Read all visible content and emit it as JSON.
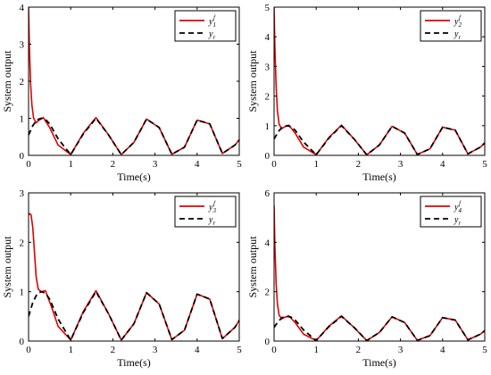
{
  "figure": {
    "background": "#ffffff",
    "colors": {
      "actual": "#e00000",
      "reference": "#000000"
    }
  },
  "chart_data": [
    {
      "type": "line",
      "xlabel": "Time(s)",
      "ylabel": "System output",
      "xlim": [
        0,
        5
      ],
      "ylim": [
        0,
        4
      ],
      "xticks": [
        "0",
        "1",
        "2",
        "3",
        "4",
        "5"
      ],
      "yticks": [
        "0",
        "1",
        "2",
        "3",
        "4"
      ],
      "legend": {
        "placement": "top-right"
      },
      "series": [
        {
          "name": "y1f",
          "label_base": "y",
          "label_sub": "1",
          "label_sup": "f",
          "color": "#e00000",
          "style": "solid",
          "x": [
            0,
            0.02,
            0.05,
            0.08,
            0.12,
            0.18,
            0.25,
            0.35,
            0.5,
            0.7,
            1.0,
            1.3,
            1.6,
            1.9,
            2.2,
            2.5,
            2.8,
            3.1,
            3.4,
            3.7,
            4.0,
            4.3,
            4.6,
            4.9,
            5.0
          ],
          "y": [
            4.0,
            2.9,
            1.9,
            1.35,
            1.0,
            0.88,
            0.95,
            1.02,
            0.75,
            0.28,
            0.02,
            0.6,
            1.02,
            0.55,
            0.02,
            0.35,
            0.98,
            0.75,
            0.03,
            0.22,
            0.95,
            0.85,
            0.05,
            0.28,
            0.42
          ]
        },
        {
          "name": "yr",
          "label_base": "y",
          "label_sub": "r",
          "label_sup": "",
          "color": "#000000",
          "style": "dashed",
          "x": [
            0,
            0.1,
            0.2,
            0.3,
            0.4,
            0.5,
            0.7,
            1.0,
            1.3,
            1.6,
            1.9,
            2.2,
            2.5,
            2.8,
            3.1,
            3.4,
            3.7,
            4.0,
            4.3,
            4.6,
            4.9,
            5.0
          ],
          "y": [
            0.55,
            0.8,
            0.96,
            1.0,
            0.97,
            0.85,
            0.45,
            0.02,
            0.58,
            1.0,
            0.55,
            0.02,
            0.35,
            0.98,
            0.75,
            0.03,
            0.22,
            0.95,
            0.85,
            0.05,
            0.28,
            0.42
          ]
        }
      ]
    },
    {
      "type": "line",
      "xlabel": "Time(s)",
      "ylabel": "System output",
      "xlim": [
        0,
        5
      ],
      "ylim": [
        0,
        5
      ],
      "xticks": [
        "0",
        "1",
        "2",
        "3",
        "4",
        "5"
      ],
      "yticks": [
        "0",
        "1",
        "2",
        "3",
        "4",
        "5"
      ],
      "legend": {
        "placement": "top-right"
      },
      "series": [
        {
          "name": "y2f",
          "label_base": "y",
          "label_sub": "2",
          "label_sup": "f",
          "color": "#e00000",
          "style": "solid",
          "x": [
            0,
            0.02,
            0.05,
            0.08,
            0.12,
            0.18,
            0.25,
            0.35,
            0.5,
            0.7,
            1.0,
            1.3,
            1.6,
            1.9,
            2.2,
            2.5,
            2.8,
            3.1,
            3.4,
            3.7,
            4.0,
            4.3,
            4.6,
            4.9,
            5.0
          ],
          "y": [
            5.0,
            3.6,
            2.3,
            1.5,
            1.05,
            0.9,
            0.96,
            1.02,
            0.75,
            0.28,
            0.02,
            0.6,
            1.02,
            0.55,
            0.02,
            0.35,
            0.98,
            0.75,
            0.03,
            0.22,
            0.95,
            0.85,
            0.05,
            0.28,
            0.42
          ]
        },
        {
          "name": "yr",
          "label_base": "y",
          "label_sub": "r",
          "label_sup": "",
          "color": "#000000",
          "style": "dashed",
          "x": [
            0,
            0.1,
            0.2,
            0.3,
            0.4,
            0.5,
            0.7,
            1.0,
            1.3,
            1.6,
            1.9,
            2.2,
            2.5,
            2.8,
            3.1,
            3.4,
            3.7,
            4.0,
            4.3,
            4.6,
            4.9,
            5.0
          ],
          "y": [
            0.55,
            0.8,
            0.96,
            1.0,
            0.97,
            0.85,
            0.45,
            0.02,
            0.58,
            1.0,
            0.55,
            0.02,
            0.35,
            0.98,
            0.75,
            0.03,
            0.22,
            0.95,
            0.85,
            0.05,
            0.28,
            0.42
          ]
        }
      ]
    },
    {
      "type": "line",
      "xlabel": "Time(s)",
      "ylabel": "System output",
      "xlim": [
        0,
        5
      ],
      "ylim": [
        0,
        3
      ],
      "xticks": [
        "0",
        "1",
        "2",
        "3",
        "4",
        "5"
      ],
      "yticks": [
        "0",
        "1",
        "2",
        "3"
      ],
      "legend": {
        "placement": "top-right"
      },
      "series": [
        {
          "name": "y3f",
          "label_base": "y",
          "label_sub": "3",
          "label_sup": "f",
          "color": "#e00000",
          "style": "solid",
          "x": [
            0,
            0.03,
            0.06,
            0.1,
            0.14,
            0.18,
            0.23,
            0.3,
            0.4,
            0.55,
            0.7,
            1.0,
            1.3,
            1.6,
            1.9,
            2.2,
            2.5,
            2.8,
            3.1,
            3.4,
            3.7,
            4.0,
            4.3,
            4.6,
            4.9,
            5.0
          ],
          "y": [
            2.55,
            2.58,
            2.55,
            2.3,
            1.8,
            1.3,
            1.05,
            1.0,
            1.02,
            0.68,
            0.3,
            0.02,
            0.6,
            1.02,
            0.55,
            0.02,
            0.35,
            0.98,
            0.75,
            0.03,
            0.22,
            0.95,
            0.85,
            0.05,
            0.28,
            0.42
          ]
        },
        {
          "name": "yr",
          "label_base": "y",
          "label_sub": "r",
          "label_sup": "",
          "color": "#000000",
          "style": "dashed",
          "x": [
            0,
            0.1,
            0.2,
            0.3,
            0.4,
            0.5,
            0.7,
            1.0,
            1.3,
            1.6,
            1.9,
            2.2,
            2.5,
            2.8,
            3.1,
            3.4,
            3.7,
            4.0,
            4.3,
            4.6,
            4.9,
            5.0
          ],
          "y": [
            0.5,
            0.78,
            0.95,
            1.0,
            0.97,
            0.85,
            0.45,
            0.02,
            0.58,
            1.0,
            0.55,
            0.02,
            0.35,
            0.98,
            0.75,
            0.03,
            0.22,
            0.95,
            0.85,
            0.05,
            0.28,
            0.42
          ]
        }
      ]
    },
    {
      "type": "line",
      "xlabel": "Time(s)",
      "ylabel": "System output",
      "xlim": [
        0,
        5
      ],
      "ylim": [
        0,
        6
      ],
      "xticks": [
        "0",
        "1",
        "2",
        "3",
        "4",
        "5"
      ],
      "yticks": [
        "0",
        "2",
        "4",
        "6"
      ],
      "legend": {
        "placement": "top-right"
      },
      "series": [
        {
          "name": "y4f",
          "label_base": "y",
          "label_sub": "4",
          "label_sup": "f",
          "color": "#e00000",
          "style": "solid",
          "x": [
            0,
            0.02,
            0.05,
            0.08,
            0.12,
            0.18,
            0.25,
            0.35,
            0.5,
            0.7,
            1.0,
            1.3,
            1.6,
            1.9,
            2.2,
            2.5,
            2.8,
            3.1,
            3.4,
            3.7,
            4.0,
            4.3,
            4.6,
            4.9,
            5.0
          ],
          "y": [
            5.5,
            3.8,
            2.3,
            1.5,
            1.05,
            0.9,
            0.96,
            1.02,
            0.75,
            0.28,
            0.02,
            0.6,
            1.02,
            0.55,
            0.02,
            0.35,
            0.98,
            0.75,
            0.03,
            0.22,
            0.95,
            0.85,
            0.05,
            0.28,
            0.42
          ]
        },
        {
          "name": "yr",
          "label_base": "y",
          "label_sub": "r",
          "label_sup": "",
          "color": "#000000",
          "style": "dashed",
          "x": [
            0,
            0.1,
            0.2,
            0.3,
            0.4,
            0.5,
            0.7,
            1.0,
            1.3,
            1.6,
            1.9,
            2.2,
            2.5,
            2.8,
            3.1,
            3.4,
            3.7,
            4.0,
            4.3,
            4.6,
            4.9,
            5.0
          ],
          "y": [
            0.55,
            0.8,
            0.96,
            1.0,
            0.97,
            0.85,
            0.45,
            0.02,
            0.58,
            1.0,
            0.55,
            0.02,
            0.35,
            0.98,
            0.75,
            0.03,
            0.22,
            0.95,
            0.85,
            0.05,
            0.28,
            0.42
          ]
        }
      ]
    }
  ]
}
